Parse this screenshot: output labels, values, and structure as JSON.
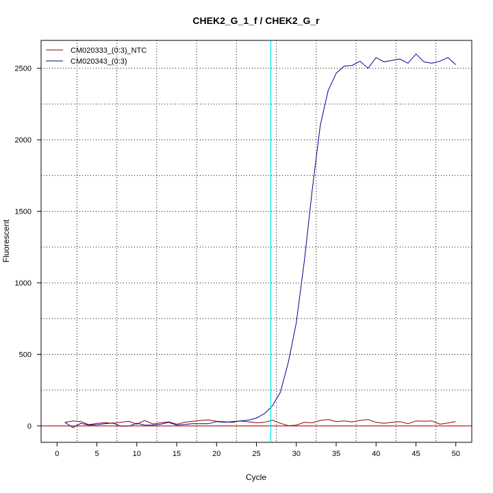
{
  "chart_data": {
    "type": "line",
    "title": "CHEK2_G_1_f / CHEK2_G_r",
    "xlabel": "Cycle",
    "ylabel": "Fluorescent",
    "xlim": [
      -2,
      52
    ],
    "ylim": [
      -115,
      2695
    ],
    "x_ticks": [
      0,
      5,
      10,
      15,
      20,
      25,
      30,
      35,
      40,
      45,
      50
    ],
    "y_ticks": [
      0,
      500,
      1000,
      1500,
      2000,
      2500
    ],
    "grid": true,
    "legend_position": "top-left",
    "threshold_cycle": 26.8,
    "threshold_color": "#00e5e5",
    "baseline_value": 0,
    "baseline_color": "#b22222",
    "x": [
      1,
      2,
      3,
      4,
      5,
      6,
      7,
      8,
      9,
      10,
      11,
      12,
      13,
      14,
      15,
      16,
      17,
      18,
      19,
      20,
      21,
      22,
      23,
      24,
      25,
      26,
      27,
      28,
      29,
      30,
      31,
      32,
      33,
      34,
      35,
      36,
      37,
      38,
      39,
      40,
      41,
      42,
      43,
      44,
      45,
      46,
      47,
      48,
      49,
      50
    ],
    "series": [
      {
        "name": "CM020333_(0:3)_NTC",
        "color": "#8b0000",
        "values": [
          25,
          35,
          30,
          8,
          18,
          22,
          18,
          25,
          32,
          12,
          38,
          14,
          22,
          28,
          12,
          25,
          32,
          38,
          42,
          32,
          28,
          25,
          35,
          28,
          22,
          25,
          40,
          18,
          2,
          5,
          25,
          22,
          38,
          45,
          30,
          35,
          28,
          38,
          45,
          25,
          18,
          25,
          30,
          15,
          35,
          32,
          35,
          12,
          20,
          30
        ]
      },
      {
        "name": "CM020343_(0:3)",
        "color": "#00008b",
        "values": [
          25,
          -12,
          18,
          5,
          8,
          15,
          20,
          -2,
          -2,
          18,
          5,
          5,
          12,
          25,
          5,
          10,
          15,
          15,
          15,
          30,
          25,
          30,
          35,
          40,
          55,
          85,
          140,
          235,
          445,
          720,
          1150,
          1650,
          2100,
          2345,
          2465,
          2515,
          2520,
          2550,
          2500,
          2575,
          2545,
          2555,
          2565,
          2535,
          2600,
          2545,
          2535,
          2550,
          2575,
          2525
        ]
      }
    ]
  }
}
